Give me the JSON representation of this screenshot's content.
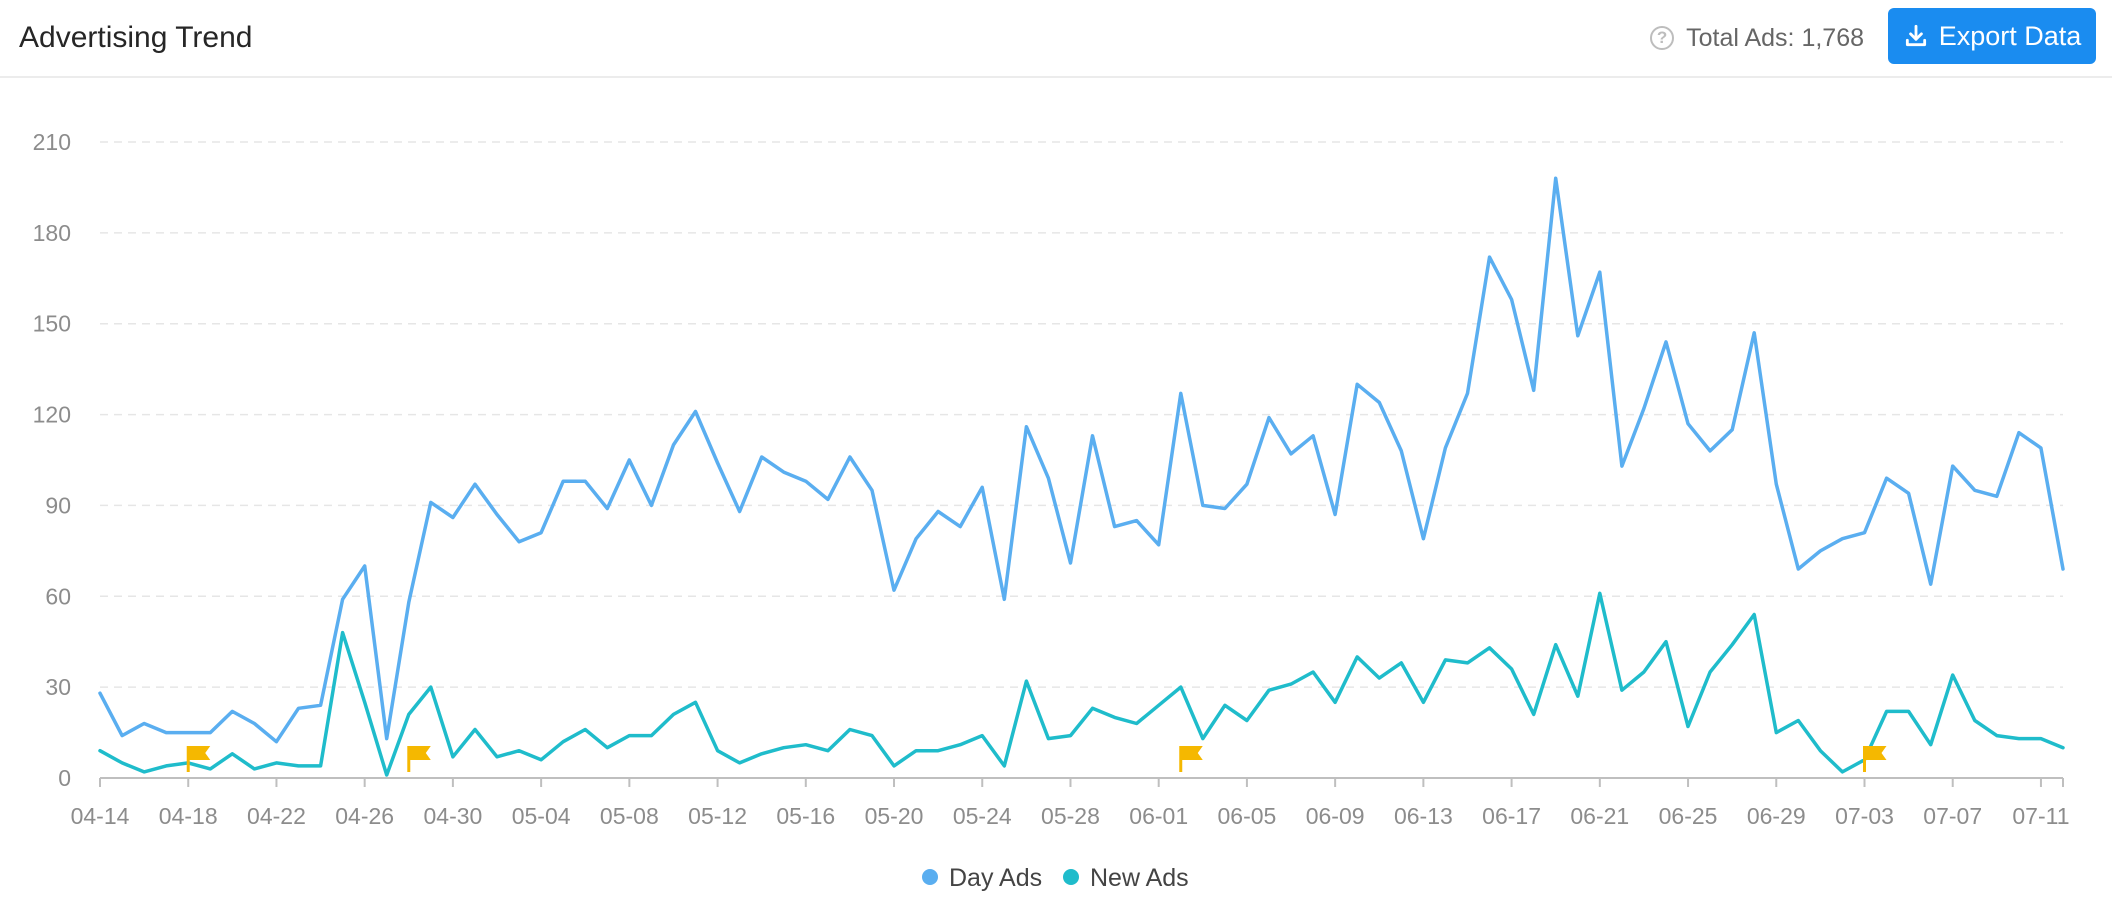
{
  "header": {
    "title": "Advertising Trend",
    "total_label": "Total Ads: 1,768",
    "help_icon": "question-circle-icon",
    "export_label": "Export Data",
    "export_icon": "download-icon",
    "export_color": "#1a8cf0"
  },
  "chart_data": {
    "type": "line",
    "title": "",
    "xlabel": "",
    "ylabel": "",
    "ylim": [
      0,
      210
    ],
    "yticks": [
      0,
      30,
      60,
      90,
      120,
      150,
      180,
      210
    ],
    "x_tick_labels": [
      "04-14",
      "04-18",
      "04-22",
      "04-26",
      "04-30",
      "05-04",
      "05-08",
      "05-12",
      "05-16",
      "05-20",
      "05-24",
      "05-28",
      "06-01",
      "06-05",
      "06-09",
      "06-13",
      "06-17",
      "06-21",
      "06-25",
      "06-29",
      "07-03",
      "07-07",
      "07-11"
    ],
    "x_tick_every": 4,
    "grid": "horizontal dashed",
    "legend_position": "bottom-center",
    "x_start": "04-14",
    "x_end": "07-12",
    "series": [
      {
        "name": "Day Ads",
        "color": "#5aaef0",
        "values": [
          28,
          14,
          18,
          15,
          15,
          15,
          22,
          18,
          12,
          23,
          24,
          59,
          70,
          13,
          58,
          91,
          86,
          97,
          87,
          78,
          81,
          98,
          98,
          89,
          105,
          90,
          110,
          121,
          104,
          88,
          106,
          101,
          98,
          92,
          106,
          95,
          62,
          79,
          88,
          83,
          96,
          59,
          116,
          99,
          71,
          113,
          83,
          85,
          77,
          127,
          90,
          89,
          97,
          119,
          107,
          113,
          87,
          130,
          124,
          108,
          79,
          109,
          127,
          172,
          158,
          128,
          198,
          146,
          167,
          103,
          122,
          144,
          117,
          108,
          115,
          147,
          97,
          69,
          75,
          79,
          81,
          99,
          94,
          64,
          103,
          95,
          93,
          114,
          109,
          69
        ]
      },
      {
        "name": "New Ads",
        "color": "#1fbccb",
        "values": [
          9,
          5,
          2,
          4,
          5,
          3,
          8,
          3,
          5,
          4,
          4,
          48,
          25,
          1,
          21,
          30,
          7,
          16,
          7,
          9,
          6,
          12,
          16,
          10,
          14,
          14,
          21,
          25,
          9,
          5,
          8,
          10,
          11,
          9,
          16,
          14,
          4,
          9,
          9,
          11,
          14,
          4,
          32,
          13,
          14,
          23,
          20,
          18,
          24,
          30,
          13,
          24,
          19,
          29,
          31,
          35,
          25,
          40,
          33,
          38,
          25,
          39,
          38,
          43,
          36,
          21,
          44,
          27,
          61,
          29,
          35,
          45,
          17,
          35,
          44,
          54,
          15,
          19,
          9,
          2,
          6,
          22,
          22,
          11,
          34,
          19,
          14,
          13,
          13,
          10
        ]
      }
    ],
    "annotations": [
      {
        "type": "flag",
        "x": "04-18",
        "color": "#f5b800"
      },
      {
        "type": "flag",
        "x": "04-28",
        "color": "#f5b800"
      },
      {
        "type": "flag",
        "x": "06-02",
        "color": "#f5b800"
      },
      {
        "type": "flag",
        "x": "07-03",
        "color": "#f5b800"
      }
    ]
  }
}
